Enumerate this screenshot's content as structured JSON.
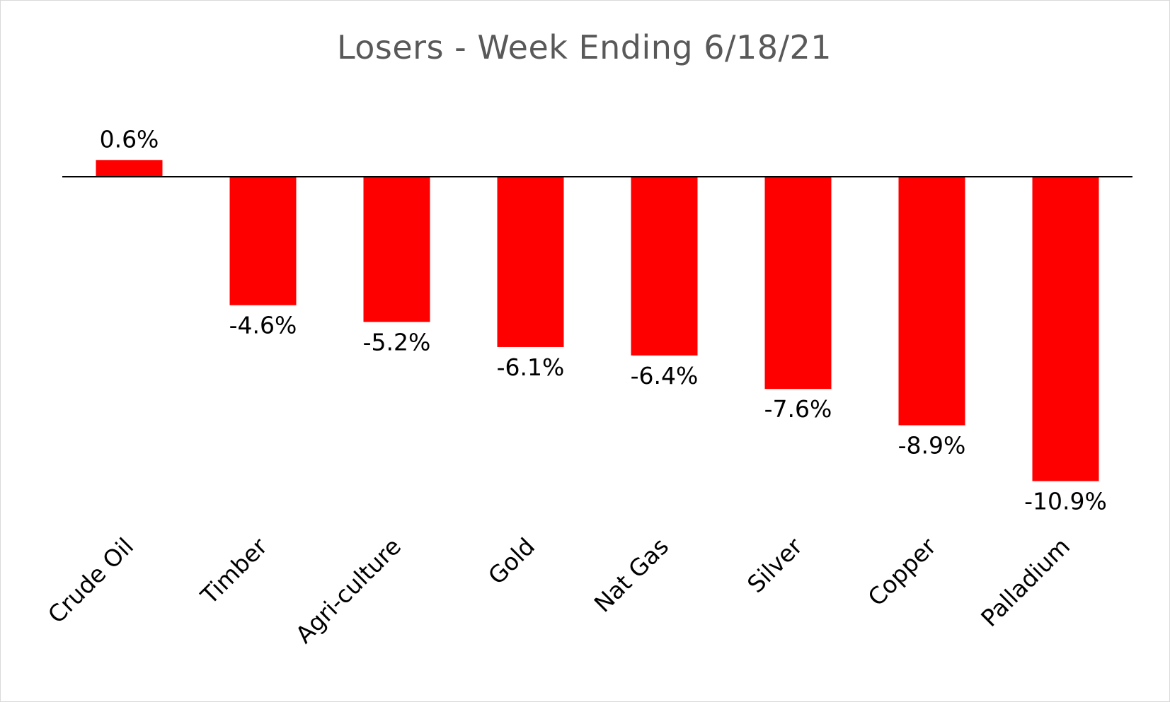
{
  "chart_data": {
    "type": "bar",
    "title": "Losers - Week Ending 6/18/21",
    "xlabel": "",
    "ylabel": "",
    "categories": [
      "Crude Oil",
      "Timber",
      "Agri-culture",
      "Gold",
      "Nat Gas",
      "Silver",
      "Copper",
      "Palladium"
    ],
    "values": [
      0.6,
      -4.6,
      -5.2,
      -6.1,
      -6.4,
      -7.6,
      -8.9,
      -10.9
    ],
    "data_labels": [
      "0.6%",
      "-4.6%",
      "-5.2%",
      "-6.1%",
      "-6.4%",
      "-7.6%",
      "-8.9%",
      "-10.9%"
    ],
    "ylim": [
      -10.9,
      0.6
    ],
    "unit": "%",
    "bar_color": "#ff0000",
    "grid": false,
    "legend": "none"
  }
}
